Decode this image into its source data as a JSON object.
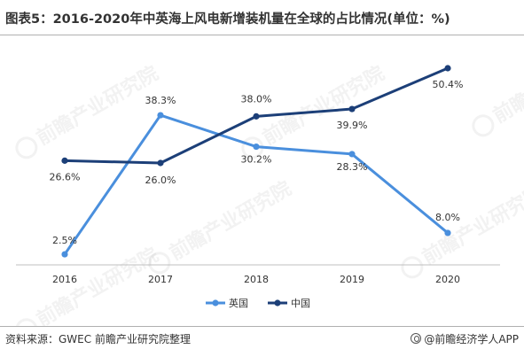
{
  "title": "图表5：2016-2020年中英海上风电新增装机量在全球的占比情况(单位：%)",
  "source": "资料来源：GWEC 前瞻产业研究院整理",
  "credit": "@前瞻经济学人APP",
  "watermark": "前瞻产业研究院",
  "chart_data": {
    "type": "line",
    "x": [
      "2016",
      "2017",
      "2018",
      "2019",
      "2020"
    ],
    "series": [
      {
        "name": "英国",
        "color": "#4a8fdd",
        "values": [
          2.5,
          38.3,
          30.2,
          28.3,
          8.0
        ],
        "labels": [
          "2.5%",
          "38.3%",
          "30.2%",
          "28.3%",
          "8.0%"
        ]
      },
      {
        "name": "中国",
        "color": "#1c3f78",
        "values": [
          26.6,
          26.0,
          38.0,
          39.9,
          50.4
        ],
        "labels": [
          "26.6%",
          "26.0%",
          "38.0%",
          "39.9%",
          "50.4%"
        ]
      }
    ],
    "legend_position": "bottom",
    "grid": false
  }
}
